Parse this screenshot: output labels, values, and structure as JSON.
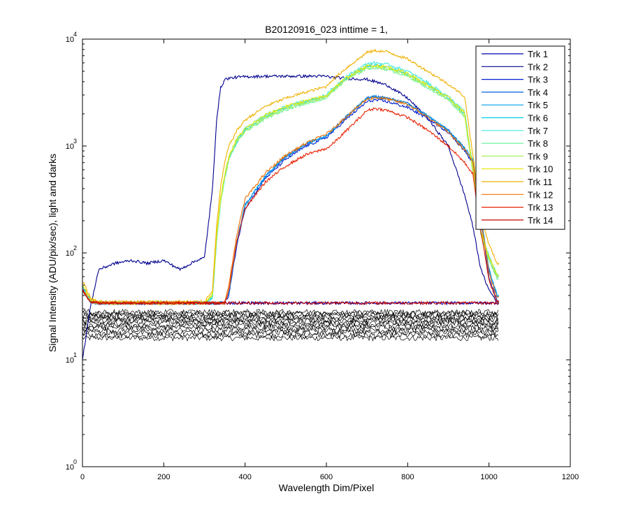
{
  "chart_data": {
    "type": "line",
    "title": "B20120916_023 inttime = 1,",
    "xlabel": "Wavelength Dim/Pixel",
    "ylabel": "Signal Intensity (ADU/pix/sec), light and darks",
    "xlim": [
      0,
      1200
    ],
    "ylim": [
      1,
      10000
    ],
    "yscale": "log",
    "x_ticks": [
      0,
      200,
      400,
      600,
      800,
      1000,
      1200
    ],
    "x_tick_labels": [
      "0",
      "200",
      "400",
      "600",
      "800",
      "1000",
      "1200"
    ],
    "y_ticks": [
      1,
      10,
      100,
      1000,
      10000
    ],
    "y_tick_labels": [
      {
        "base": "10",
        "exp": "0"
      },
      {
        "base": "10",
        "exp": "1"
      },
      {
        "base": "10",
        "exp": "2"
      },
      {
        "base": "10",
        "exp": "3"
      },
      {
        "base": "10",
        "exp": "4"
      }
    ],
    "grid": false,
    "legend_position": "top-right",
    "x": [
      0,
      20,
      40,
      80,
      120,
      160,
      200,
      240,
      280,
      300,
      320,
      330,
      340,
      350,
      360,
      380,
      400,
      450,
      500,
      550,
      600,
      610,
      650,
      700,
      720,
      750,
      800,
      850,
      900,
      940,
      960,
      980,
      1000,
      1020
    ],
    "series": [
      {
        "name": "Trk 1",
        "color": "#0000b4",
        "values": [
          45,
          35,
          34,
          34,
          34,
          34,
          34,
          34,
          34,
          34,
          34,
          34,
          34,
          34,
          34,
          34,
          34,
          34,
          34,
          34,
          34,
          34,
          34,
          34,
          34,
          34,
          34,
          34,
          34,
          34,
          34,
          34,
          34,
          34
        ]
      },
      {
        "name": "Trk 2",
        "color": "#00008f",
        "values": [
          10,
          32,
          70,
          80,
          85,
          80,
          85,
          70,
          85,
          90,
          400,
          1800,
          3500,
          4200,
          4300,
          4400,
          4450,
          4500,
          4500,
          4500,
          4500,
          4400,
          4300,
          4200,
          4000,
          3700,
          2800,
          1800,
          1000,
          350,
          180,
          70,
          45,
          35
        ]
      },
      {
        "name": "Trk 3",
        "color": "#0020d0",
        "values": [
          45,
          35,
          34,
          34,
          34,
          34,
          34,
          34,
          34,
          34,
          34,
          34,
          34,
          34,
          40,
          120,
          260,
          500,
          750,
          1000,
          1200,
          1300,
          1800,
          2600,
          2700,
          2600,
          2300,
          1800,
          1350,
          900,
          700,
          200,
          60,
          35
        ]
      },
      {
        "name": "Trk 4",
        "color": "#0060e0",
        "values": [
          45,
          35,
          34,
          34,
          34,
          34,
          34,
          34,
          34,
          34,
          34,
          34,
          34,
          34,
          42,
          130,
          280,
          520,
          800,
          1050,
          1250,
          1350,
          1900,
          2800,
          2900,
          2800,
          2500,
          1900,
          1400,
          950,
          750,
          220,
          70,
          40
        ]
      },
      {
        "name": "Trk 5",
        "color": "#00a0e8",
        "values": [
          48,
          36,
          34,
          34,
          34,
          34,
          34,
          34,
          34,
          34,
          34,
          34,
          34,
          34,
          42,
          130,
          280,
          520,
          800,
          1050,
          1250,
          1350,
          1900,
          2800,
          2900,
          2800,
          2500,
          1900,
          1400,
          950,
          750,
          220,
          70,
          40
        ]
      },
      {
        "name": "Trk 6",
        "color": "#00d0e8",
        "values": [
          45,
          35,
          34,
          34,
          34,
          34,
          34,
          34,
          34,
          34,
          38,
          130,
          300,
          500,
          750,
          1100,
          1400,
          1900,
          2300,
          2600,
          2900,
          3200,
          4300,
          5600,
          5700,
          5500,
          4700,
          3700,
          2800,
          2000,
          600,
          150,
          90,
          60
        ]
      },
      {
        "name": "Trk 7",
        "color": "#40e8e0",
        "values": [
          45,
          35,
          34,
          34,
          34,
          34,
          34,
          34,
          34,
          34,
          40,
          140,
          320,
          520,
          780,
          1150,
          1450,
          1950,
          2350,
          2650,
          3000,
          3300,
          4500,
          5900,
          6000,
          5800,
          5000,
          3900,
          2900,
          2100,
          650,
          160,
          95,
          62
        ]
      },
      {
        "name": "Trk 8",
        "color": "#70f0a0",
        "values": [
          45,
          35,
          34,
          34,
          34,
          34,
          34,
          34,
          34,
          34,
          40,
          130,
          300,
          500,
          750,
          1100,
          1350,
          1800,
          2200,
          2500,
          2800,
          3100,
          4200,
          5300,
          5400,
          5200,
          4500,
          3500,
          2700,
          1900,
          580,
          150,
          85,
          58
        ]
      },
      {
        "name": "Trk 9",
        "color": "#a8f060",
        "values": [
          45,
          35,
          34,
          34,
          34,
          34,
          34,
          34,
          34,
          34,
          40,
          140,
          310,
          510,
          760,
          1120,
          1380,
          1850,
          2250,
          2550,
          2850,
          3150,
          4250,
          5400,
          5500,
          5300,
          4600,
          3600,
          2750,
          1950,
          600,
          155,
          88,
          60
        ]
      },
      {
        "name": "Trk 10",
        "color": "#e8e800",
        "values": [
          50,
          37,
          34,
          34,
          34,
          34,
          34,
          34,
          34,
          34,
          42,
          150,
          330,
          540,
          800,
          1180,
          1450,
          1950,
          2350,
          2650,
          2950,
          3250,
          4400,
          5600,
          5700,
          5500,
          4800,
          3700,
          2850,
          2050,
          620,
          160,
          92,
          62
        ]
      },
      {
        "name": "Trk 11",
        "color": "#f0b000",
        "values": [
          55,
          38,
          35,
          35,
          35,
          35,
          35,
          35,
          35,
          35,
          45,
          180,
          420,
          700,
          1000,
          1400,
          1750,
          2350,
          2800,
          3200,
          3600,
          4000,
          5400,
          7500,
          7800,
          7600,
          6500,
          5000,
          3800,
          2900,
          850,
          220,
          120,
          80
        ]
      },
      {
        "name": "Trk 12",
        "color": "#f07000",
        "values": [
          45,
          35,
          34,
          34,
          34,
          34,
          34,
          34,
          34,
          34,
          34,
          34,
          34,
          34,
          50,
          150,
          320,
          560,
          820,
          1060,
          1300,
          1380,
          1900,
          2750,
          2850,
          2750,
          2450,
          1850,
          1350,
          920,
          720,
          210,
          65,
          38
        ]
      },
      {
        "name": "Trk 13",
        "color": "#e82000",
        "values": [
          45,
          35,
          34,
          34,
          34,
          34,
          34,
          34,
          34,
          34,
          34,
          34,
          34,
          34,
          45,
          130,
          260,
          460,
          650,
          830,
          950,
          1000,
          1400,
          2150,
          2250,
          2150,
          1850,
          1400,
          1000,
          700,
          550,
          160,
          55,
          35
        ]
      },
      {
        "name": "Trk 14",
        "color": "#c00000",
        "values": [
          45,
          35,
          34,
          34,
          34,
          34,
          34,
          34,
          34,
          34,
          34,
          34,
          34,
          34,
          34,
          34,
          34,
          34,
          34,
          34,
          34,
          34,
          34,
          34,
          34,
          34,
          34,
          34,
          34,
          34,
          34,
          34,
          34,
          34
        ]
      }
    ],
    "dark_series": [
      {
        "color": "#000000",
        "values": [
          22,
          22,
          22,
          22,
          22,
          22,
          22,
          22,
          22,
          22,
          22,
          22,
          22,
          22,
          22,
          22,
          22,
          22,
          22,
          22,
          22,
          22,
          22,
          22,
          22,
          22,
          22,
          22,
          22,
          22,
          22,
          22,
          22,
          22
        ]
      }
    ]
  }
}
